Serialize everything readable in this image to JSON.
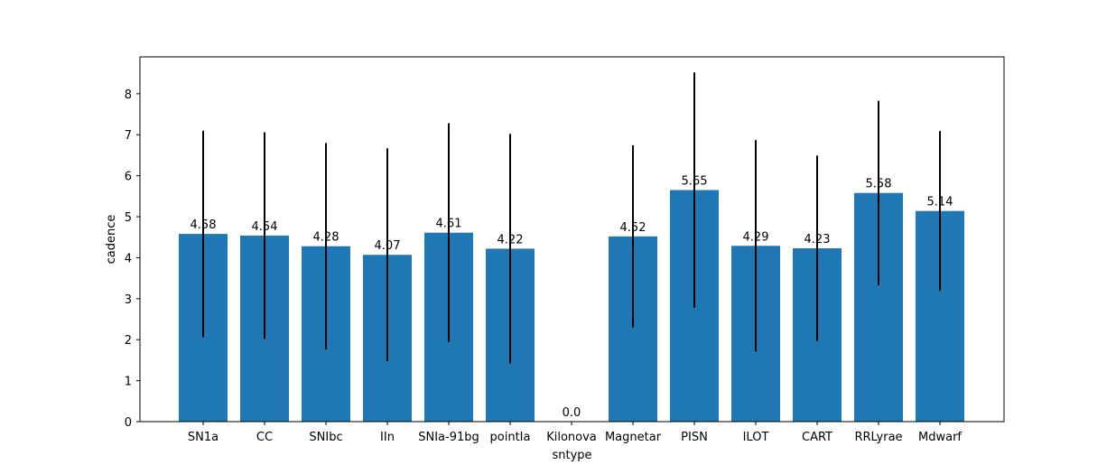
{
  "chart_data": {
    "type": "bar",
    "xlabel": "sntype",
    "ylabel": "cadence",
    "categories": [
      "SN1a",
      "CC",
      "SNIbc",
      "IIn",
      "SNIa-91bg",
      "pointIa",
      "Kilonova",
      "Magnetar",
      "PISN",
      "ILOT",
      "CART",
      "RRLyrae",
      "Mdwarf"
    ],
    "values": [
      4.58,
      4.54,
      4.28,
      4.07,
      4.61,
      4.22,
      0.0,
      4.52,
      5.65,
      4.29,
      4.23,
      5.58,
      5.14
    ],
    "value_labels": [
      "4.58",
      "4.54",
      "4.28",
      "4.07",
      "4.61",
      "4.22",
      "0.0",
      "4.52",
      "5.65",
      "4.29",
      "4.23",
      "5.58",
      "5.14"
    ],
    "errors": [
      2.52,
      2.52,
      2.52,
      2.6,
      2.67,
      2.8,
      0.0,
      2.22,
      2.87,
      2.58,
      2.26,
      2.25,
      1.95
    ],
    "ylim": [
      0,
      8.9
    ],
    "yticks": [
      0,
      1,
      2,
      3,
      4,
      5,
      6,
      7,
      8
    ],
    "bar_color": "#1f77b4",
    "error_color": "#000000",
    "grid": false,
    "legend": false
  }
}
